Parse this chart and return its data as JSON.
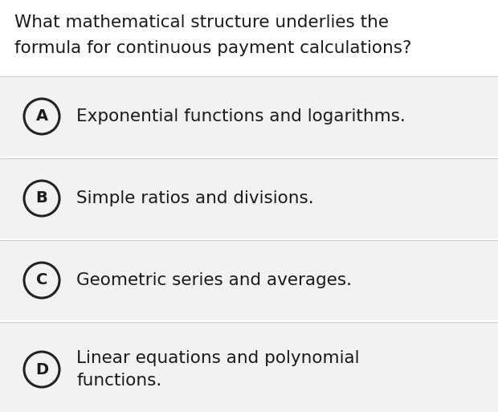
{
  "question_line1": "What mathematical structure underlies the",
  "question_line2": "formula for continuous payment calculations?",
  "options": [
    {
      "label": "A",
      "lines": [
        "Exponential functions and logarithms."
      ]
    },
    {
      "label": "B",
      "lines": [
        "Simple ratios and divisions."
      ]
    },
    {
      "label": "C",
      "lines": [
        "Geometric series and averages."
      ]
    },
    {
      "label": "D",
      "lines": [
        "Linear equations and polynomial",
        "functions."
      ]
    }
  ],
  "bg_color": "#ffffff",
  "option_bg_color": "#f2f2f2",
  "divider_color": "#cccccc",
  "text_color": "#1a1a1a",
  "circle_edge_color": "#222222",
  "question_fontsize": 15.5,
  "option_fontsize": 15.5,
  "label_fontsize": 14,
  "fig_width": 6.2,
  "fig_height": 5.13,
  "dpi": 100
}
